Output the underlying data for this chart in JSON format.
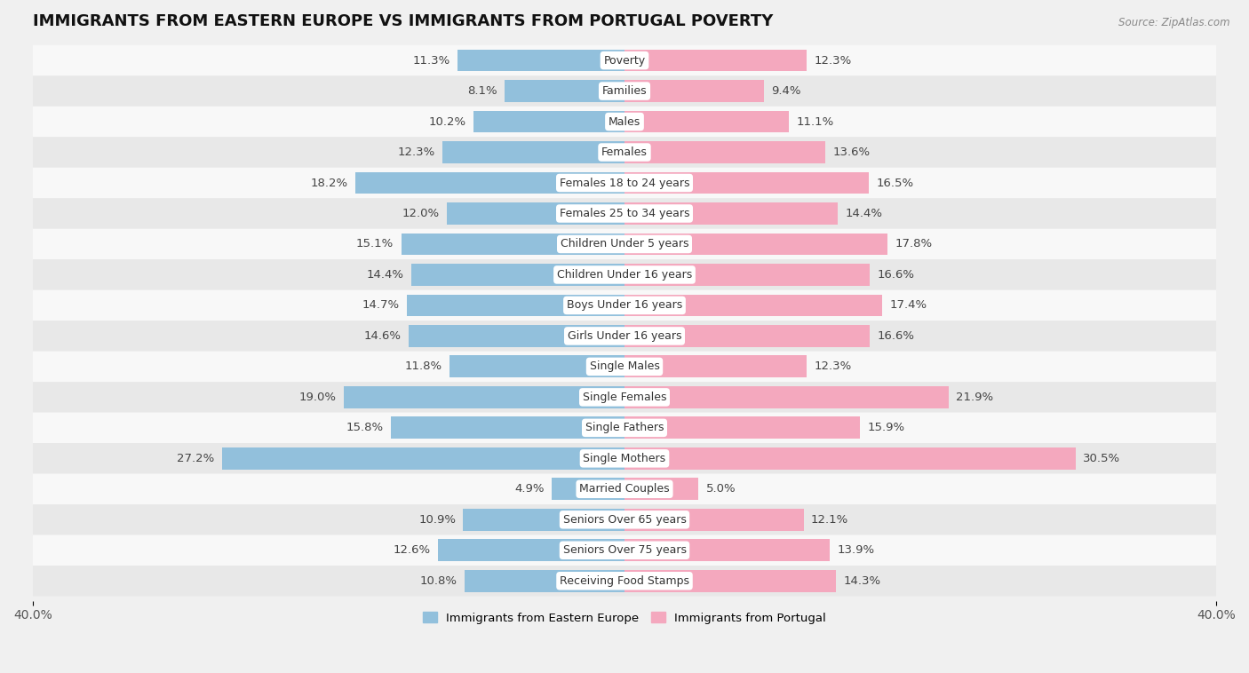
{
  "title": "IMMIGRANTS FROM EASTERN EUROPE VS IMMIGRANTS FROM PORTUGAL POVERTY",
  "source": "Source: ZipAtlas.com",
  "categories": [
    "Poverty",
    "Families",
    "Males",
    "Females",
    "Females 18 to 24 years",
    "Females 25 to 34 years",
    "Children Under 5 years",
    "Children Under 16 years",
    "Boys Under 16 years",
    "Girls Under 16 years",
    "Single Males",
    "Single Females",
    "Single Fathers",
    "Single Mothers",
    "Married Couples",
    "Seniors Over 65 years",
    "Seniors Over 75 years",
    "Receiving Food Stamps"
  ],
  "eastern_europe": [
    11.3,
    8.1,
    10.2,
    12.3,
    18.2,
    12.0,
    15.1,
    14.4,
    14.7,
    14.6,
    11.8,
    19.0,
    15.8,
    27.2,
    4.9,
    10.9,
    12.6,
    10.8
  ],
  "portugal": [
    12.3,
    9.4,
    11.1,
    13.6,
    16.5,
    14.4,
    17.8,
    16.6,
    17.4,
    16.6,
    12.3,
    21.9,
    15.9,
    30.5,
    5.0,
    12.1,
    13.9,
    14.3
  ],
  "color_eastern": "#92c0dc",
  "color_portugal": "#f4a8be",
  "background_color": "#f0f0f0",
  "row_bg_odd": "#f8f8f8",
  "row_bg_even": "#e8e8e8",
  "xlim": 40.0,
  "bar_height": 0.72,
  "label_fontsize": 9.5,
  "title_fontsize": 13,
  "cat_fontsize": 9
}
